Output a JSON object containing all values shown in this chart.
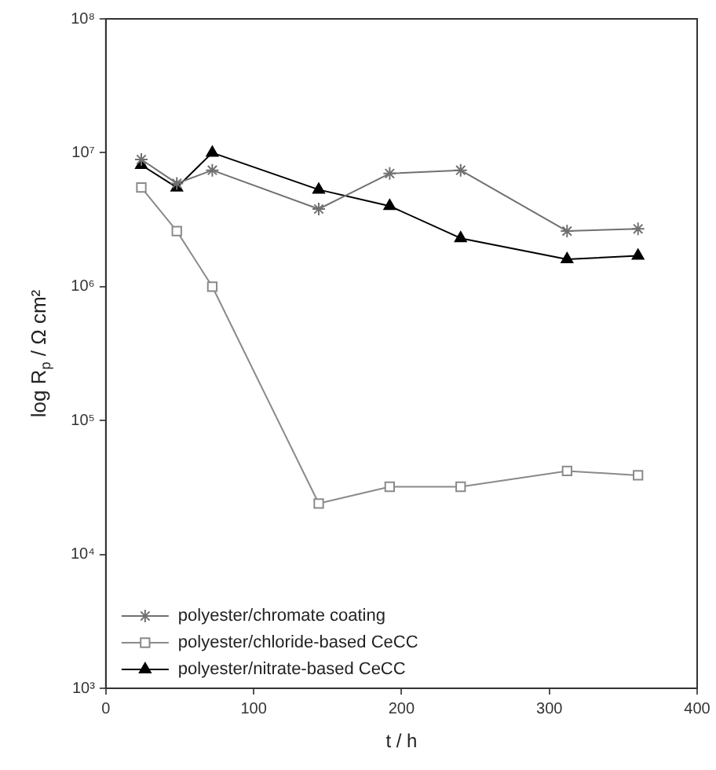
{
  "chart_data": {
    "type": "line",
    "xlabel": "t / h",
    "ylabel": "log R$_{p}$ / Ω cm²",
    "log": "y",
    "grid": false,
    "legend": "bottom left",
    "line_style": "solid",
    "xlim": [
      0,
      400
    ],
    "xticks": [
      0,
      100,
      200,
      300,
      400
    ],
    "ylim": [
      1000,
      100000000
    ],
    "yticks": [
      {
        "value": 1000,
        "label": "10³"
      },
      {
        "value": 10000,
        "label": "10⁴"
      },
      {
        "value": 100000,
        "label": "10⁵"
      },
      {
        "value": 1000000,
        "label": "10⁶"
      },
      {
        "value": 10000000,
        "label": "10⁷"
      },
      {
        "value": 100000000,
        "label": "10⁸"
      }
    ],
    "x": [
      24,
      48,
      72,
      144,
      192,
      240,
      312,
      360
    ],
    "series": [
      {
        "name": "polyester/chromate coating",
        "color": "#707070",
        "marker": "cross",
        "values": [
          8900000,
          5900000,
          7400000,
          3800000,
          7000000,
          7400000,
          2600000,
          2700000
        ]
      },
      {
        "name": "polyester/chloride-based CeCC",
        "color": "#8a8a8a",
        "marker": "square",
        "values": [
          5500000,
          2600000,
          1000000,
          24000,
          32000,
          32000,
          42000,
          39000
        ]
      },
      {
        "name": "polyester/nitrate-based CeCC",
        "color": "#000000",
        "marker": "triangle",
        "values": [
          8100000,
          5500000,
          10000000,
          5300000,
          4000000,
          2300000,
          1600000,
          1700000
        ]
      }
    ]
  }
}
